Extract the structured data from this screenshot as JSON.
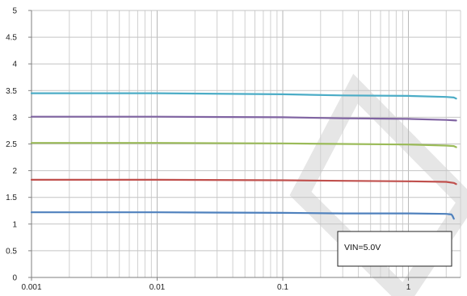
{
  "chart_data": {
    "type": "line",
    "x_scale": "log",
    "xlim": [
      0.001,
      2.6
    ],
    "ylim": [
      0,
      5
    ],
    "x_ticks": [
      "0.001",
      "0.01",
      "0.1",
      "1"
    ],
    "y_ticks": [
      "0",
      "0.5",
      "1",
      "1.5",
      "2",
      "2.5",
      "3",
      "3.5",
      "4",
      "4.5",
      "5"
    ],
    "grid": true,
    "annotation": "VIN=5.0V",
    "series": [
      {
        "color": "#4bacc6",
        "x": [
          0.001,
          0.01,
          0.1,
          0.3,
          1,
          2,
          2.3,
          2.4
        ],
        "y": [
          3.45,
          3.45,
          3.43,
          3.41,
          3.4,
          3.38,
          3.37,
          3.35
        ]
      },
      {
        "color": "#8064a2",
        "x": [
          0.001,
          0.01,
          0.1,
          0.3,
          1,
          2,
          2.4
        ],
        "y": [
          3.01,
          3.01,
          3.0,
          2.98,
          2.97,
          2.95,
          2.94
        ]
      },
      {
        "color": "#9bbb59",
        "x": [
          0.001,
          0.01,
          0.1,
          0.3,
          1,
          2,
          2.3,
          2.4
        ],
        "y": [
          2.52,
          2.52,
          2.51,
          2.5,
          2.49,
          2.47,
          2.46,
          2.44
        ]
      },
      {
        "color": "#c0504d",
        "x": [
          0.001,
          0.01,
          0.1,
          0.3,
          1,
          2,
          2.3,
          2.4
        ],
        "y": [
          1.83,
          1.83,
          1.82,
          1.81,
          1.8,
          1.79,
          1.77,
          1.75
        ]
      },
      {
        "color": "#4f81bd",
        "x": [
          0.001,
          0.01,
          0.1,
          0.3,
          1,
          2,
          2.2,
          2.25,
          2.3
        ],
        "y": [
          1.22,
          1.22,
          1.21,
          1.2,
          1.2,
          1.19,
          1.18,
          1.15,
          1.1
        ]
      }
    ]
  },
  "watermark": {
    "color": "#e6e6e6"
  }
}
